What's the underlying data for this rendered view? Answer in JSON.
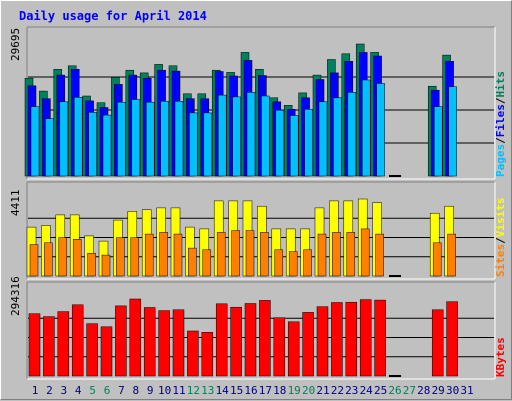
{
  "title": "Daily usage for April 2014",
  "colors": {
    "background": "#c0c0c0",
    "title": "#0000ff",
    "hits": "#00805c",
    "files": "#0000ff",
    "pages": "#00c0ff",
    "visits": "#ffff00",
    "sites": "#ff8000",
    "kbytes": "#ff0000",
    "weekday_label": "#000080",
    "weekend_label": "#00805c",
    "gridline": "#000000"
  },
  "chart_data": [
    {
      "type": "bar",
      "panel": "top",
      "ymax_label": "29695",
      "ylim": [
        0,
        29695
      ],
      "categories": [
        1,
        2,
        3,
        4,
        5,
        6,
        7,
        8,
        9,
        10,
        11,
        12,
        13,
        14,
        15,
        16,
        17,
        18,
        19,
        20,
        21,
        22,
        23,
        24,
        25,
        26,
        27,
        28,
        29,
        30,
        31
      ],
      "legend": [
        "Pages",
        "/",
        "Files",
        "/",
        "Hits"
      ],
      "series": [
        {
          "name": "Hits",
          "values": [
            22000,
            19100,
            24000,
            24800,
            18000,
            16500,
            22200,
            23800,
            23200,
            25100,
            24800,
            18500,
            18500,
            23800,
            23300,
            27800,
            24000,
            17600,
            15900,
            18700,
            22700,
            26200,
            27500,
            29695,
            27800,
            0,
            0,
            0,
            20200,
            27200,
            0
          ]
        },
        {
          "name": "Files",
          "values": [
            20300,
            17400,
            22700,
            24000,
            16900,
            15400,
            20600,
            22700,
            22000,
            23800,
            23600,
            17400,
            17400,
            23500,
            22500,
            26000,
            22600,
            16700,
            15000,
            17600,
            21700,
            23200,
            25800,
            27800,
            27000,
            0,
            0,
            0,
            19300,
            25800,
            0
          ]
        },
        {
          "name": "Pages",
          "values": [
            15600,
            12900,
            16700,
            17700,
            14300,
            13700,
            16600,
            17200,
            16600,
            16800,
            16800,
            14200,
            14200,
            18200,
            17800,
            18800,
            18000,
            14800,
            13600,
            15000,
            16700,
            17600,
            18800,
            21600,
            20800,
            0,
            0,
            0,
            15600,
            20100,
            0
          ]
        }
      ]
    },
    {
      "type": "bar",
      "panel": "middle",
      "ymax_label": "4411",
      "ylim": [
        0,
        4411
      ],
      "categories": [
        1,
        2,
        3,
        4,
        5,
        6,
        7,
        8,
        9,
        10,
        11,
        12,
        13,
        14,
        15,
        16,
        17,
        18,
        19,
        20,
        21,
        22,
        23,
        24,
        25,
        26,
        27,
        28,
        29,
        30,
        31
      ],
      "legend": [
        "Sites",
        "/",
        "Visits"
      ],
      "series": [
        {
          "name": "Visits",
          "values": [
            2800,
            2900,
            3500,
            3500,
            2300,
            2000,
            3200,
            3700,
            3800,
            3900,
            3900,
            2800,
            2700,
            4300,
            4300,
            4300,
            4000,
            2700,
            2700,
            2700,
            3900,
            4300,
            4300,
            4411,
            4200,
            0,
            0,
            0,
            3600,
            4000,
            0
          ]
        },
        {
          "name": "Sites",
          "values": [
            1800,
            1900,
            2200,
            2100,
            1300,
            1200,
            2200,
            2200,
            2400,
            2500,
            2400,
            1600,
            1500,
            2500,
            2600,
            2600,
            2500,
            1500,
            1400,
            1500,
            2400,
            2500,
            2500,
            2700,
            2400,
            0,
            0,
            0,
            1900,
            2400,
            0
          ]
        }
      ]
    },
    {
      "type": "bar",
      "panel": "bottom",
      "ymax_label": "294316",
      "ylim": [
        0,
        294316
      ],
      "categories": [
        1,
        2,
        3,
        4,
        5,
        6,
        7,
        8,
        9,
        10,
        11,
        12,
        13,
        14,
        15,
        16,
        17,
        18,
        19,
        20,
        21,
        22,
        23,
        24,
        25,
        26,
        27,
        28,
        29,
        30,
        31
      ],
      "legend": [
        "KBytes"
      ],
      "series": [
        {
          "name": "KBytes",
          "values": [
            238000,
            227000,
            246000,
            272000,
            200000,
            188000,
            268000,
            294316,
            262000,
            250000,
            253000,
            172000,
            167000,
            276000,
            263000,
            277000,
            289000,
            223000,
            207000,
            243000,
            265000,
            281000,
            282000,
            292000,
            290000,
            0,
            0,
            0,
            253000,
            284000,
            0
          ]
        }
      ]
    }
  ],
  "weekend_days": [
    5,
    6,
    12,
    13,
    19,
    20,
    26,
    27
  ]
}
